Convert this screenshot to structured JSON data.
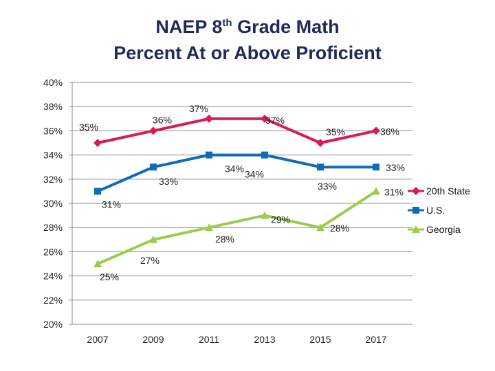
{
  "title": {
    "line1_pre": "NAEP 8",
    "line1_sup": "th",
    "line1_post": " Grade Math",
    "line2": "Percent At or Above Proficient"
  },
  "chart_data": {
    "type": "line",
    "title": "NAEP 8th Grade Math Percent At or Above Proficient",
    "categories": [
      "2007",
      "2009",
      "2011",
      "2013",
      "2015",
      "2017"
    ],
    "ylim": [
      20,
      40
    ],
    "yticks": [
      20,
      22,
      24,
      26,
      28,
      30,
      32,
      34,
      36,
      38,
      40
    ],
    "ytick_format": "{v}%",
    "grid": true,
    "legend_position": "right",
    "series": [
      {
        "name": "20th State",
        "color": "#d81b52",
        "marker": "diamond",
        "values": [
          35,
          36,
          37,
          37,
          35,
          36
        ],
        "labels": [
          "35%",
          "36%",
          "37%",
          "37%",
          "35%",
          "36%"
        ]
      },
      {
        "name": "U.S.",
        "color": "#0e6bb8",
        "marker": "square",
        "values": [
          31,
          33,
          34,
          34,
          33,
          33
        ],
        "labels": [
          "31%",
          "33%",
          "34%",
          "34%",
          "33%",
          "33%"
        ]
      },
      {
        "name": "Georgia",
        "color": "#9acd4c",
        "marker": "triangle",
        "values": [
          25,
          27,
          28,
          29,
          28,
          31
        ],
        "labels": [
          "25%",
          "27%",
          "28%",
          "29%",
          "28%",
          "31%"
        ]
      }
    ]
  }
}
